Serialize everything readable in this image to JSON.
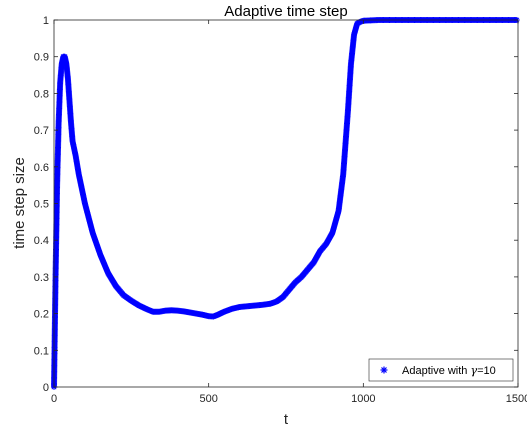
{
  "chart_data": {
    "type": "scatter",
    "title": "Adaptive time step",
    "xlabel": "t",
    "ylabel": "time step size",
    "xlim": [
      0,
      1500
    ],
    "ylim": [
      0,
      1
    ],
    "xticks": [
      "0",
      "500",
      "1000",
      "1500"
    ],
    "yticks": [
      "0",
      "0.1",
      "0.2",
      "0.3",
      "0.4",
      "0.5",
      "0.6",
      "0.7",
      "0.8",
      "0.9",
      "1"
    ],
    "grid": false,
    "legend_position": "bottom-right",
    "marker": "asterisk",
    "colors": {
      "series": "#0000ff",
      "axis": "#262626"
    },
    "series": [
      {
        "legend_prefix": "Adaptive with ",
        "legend_symbol": "γ",
        "legend_suffix": "=10",
        "x": [
          0,
          5,
          10,
          15,
          20,
          25,
          30,
          35,
          40,
          45,
          50,
          55,
          60,
          70,
          80,
          100,
          125,
          150,
          175,
          200,
          225,
          250,
          275,
          300,
          320,
          340,
          360,
          380,
          400,
          420,
          440,
          460,
          480,
          500,
          515,
          530,
          550,
          575,
          600,
          625,
          650,
          675,
          700,
          720,
          740,
          760,
          780,
          800,
          820,
          840,
          860,
          880,
          900,
          920,
          935,
          950,
          960,
          970,
          980,
          990,
          1000,
          1050,
          1100,
          1200,
          1300,
          1400,
          1500
        ],
        "y": [
          0.0,
          0.3,
          0.55,
          0.72,
          0.83,
          0.88,
          0.9,
          0.9,
          0.88,
          0.84,
          0.78,
          0.72,
          0.67,
          0.63,
          0.58,
          0.5,
          0.42,
          0.36,
          0.31,
          0.275,
          0.25,
          0.235,
          0.222,
          0.212,
          0.205,
          0.205,
          0.208,
          0.209,
          0.208,
          0.206,
          0.203,
          0.2,
          0.197,
          0.193,
          0.192,
          0.197,
          0.205,
          0.213,
          0.218,
          0.22,
          0.222,
          0.224,
          0.227,
          0.233,
          0.245,
          0.265,
          0.285,
          0.3,
          0.32,
          0.34,
          0.37,
          0.39,
          0.42,
          0.48,
          0.58,
          0.75,
          0.88,
          0.96,
          0.99,
          0.995,
          0.998,
          1.0,
          1.0,
          1.0,
          1.0,
          1.0,
          1.0
        ]
      }
    ]
  }
}
